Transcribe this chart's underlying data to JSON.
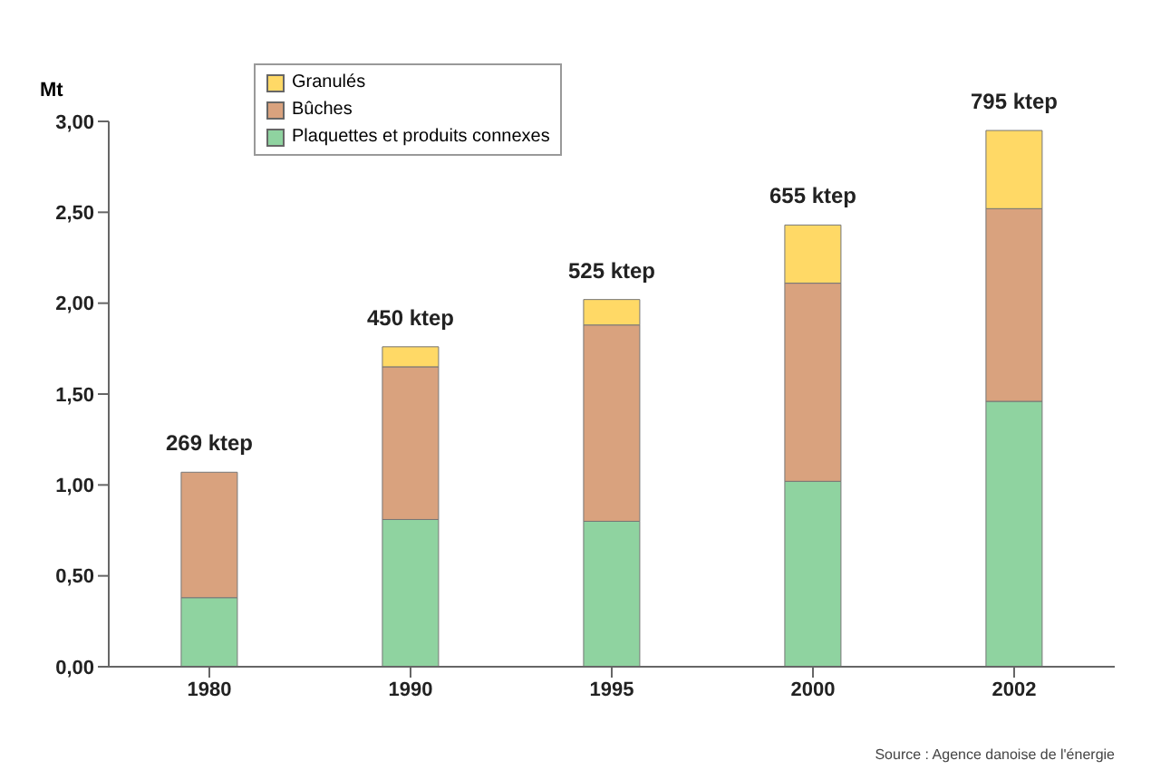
{
  "chart_data": {
    "type": "bar",
    "stacked": true,
    "ylabel": "Mt",
    "categories": [
      "1980",
      "1990",
      "1995",
      "2000",
      "2002"
    ],
    "series": [
      {
        "name": "Plaquettes et produits connexes",
        "color": "#8fd3a0",
        "values": [
          0.38,
          0.81,
          0.8,
          1.02,
          1.46
        ]
      },
      {
        "name": "Bûches",
        "color": "#d9a27e",
        "values": [
          0.69,
          0.84,
          1.08,
          1.09,
          1.06
        ]
      },
      {
        "name": "Granulés",
        "color": "#ffd966",
        "values": [
          0,
          0.11,
          0.14,
          0.32,
          0.43
        ]
      }
    ],
    "ylim": [
      0,
      3
    ],
    "yticks": [
      {
        "value": 0,
        "label": "0,00"
      },
      {
        "value": 0.5,
        "label": "0,50"
      },
      {
        "value": 1,
        "label": "1,00"
      },
      {
        "value": 1.5,
        "label": "1,50"
      },
      {
        "value": 2,
        "label": "2,00"
      },
      {
        "value": 2.5,
        "label": "2,50"
      },
      {
        "value": 3,
        "label": "3,00"
      }
    ],
    "grid": false,
    "legend": "top left",
    "annotations": [
      {
        "text": "269 ktep",
        "x": "1980",
        "y": 1.07
      },
      {
        "text": "450 ktep",
        "x": "1990",
        "y": 1.76
      },
      {
        "text": "525 ktep",
        "x": "1995",
        "y": 2.02
      },
      {
        "text": "655 ktep",
        "x": "2000",
        "y": 2.43
      },
      {
        "text": "795 ktep",
        "x": "2002",
        "y": 2.95
      },
      "Source : Agence danoise de l'énergie"
    ]
  }
}
